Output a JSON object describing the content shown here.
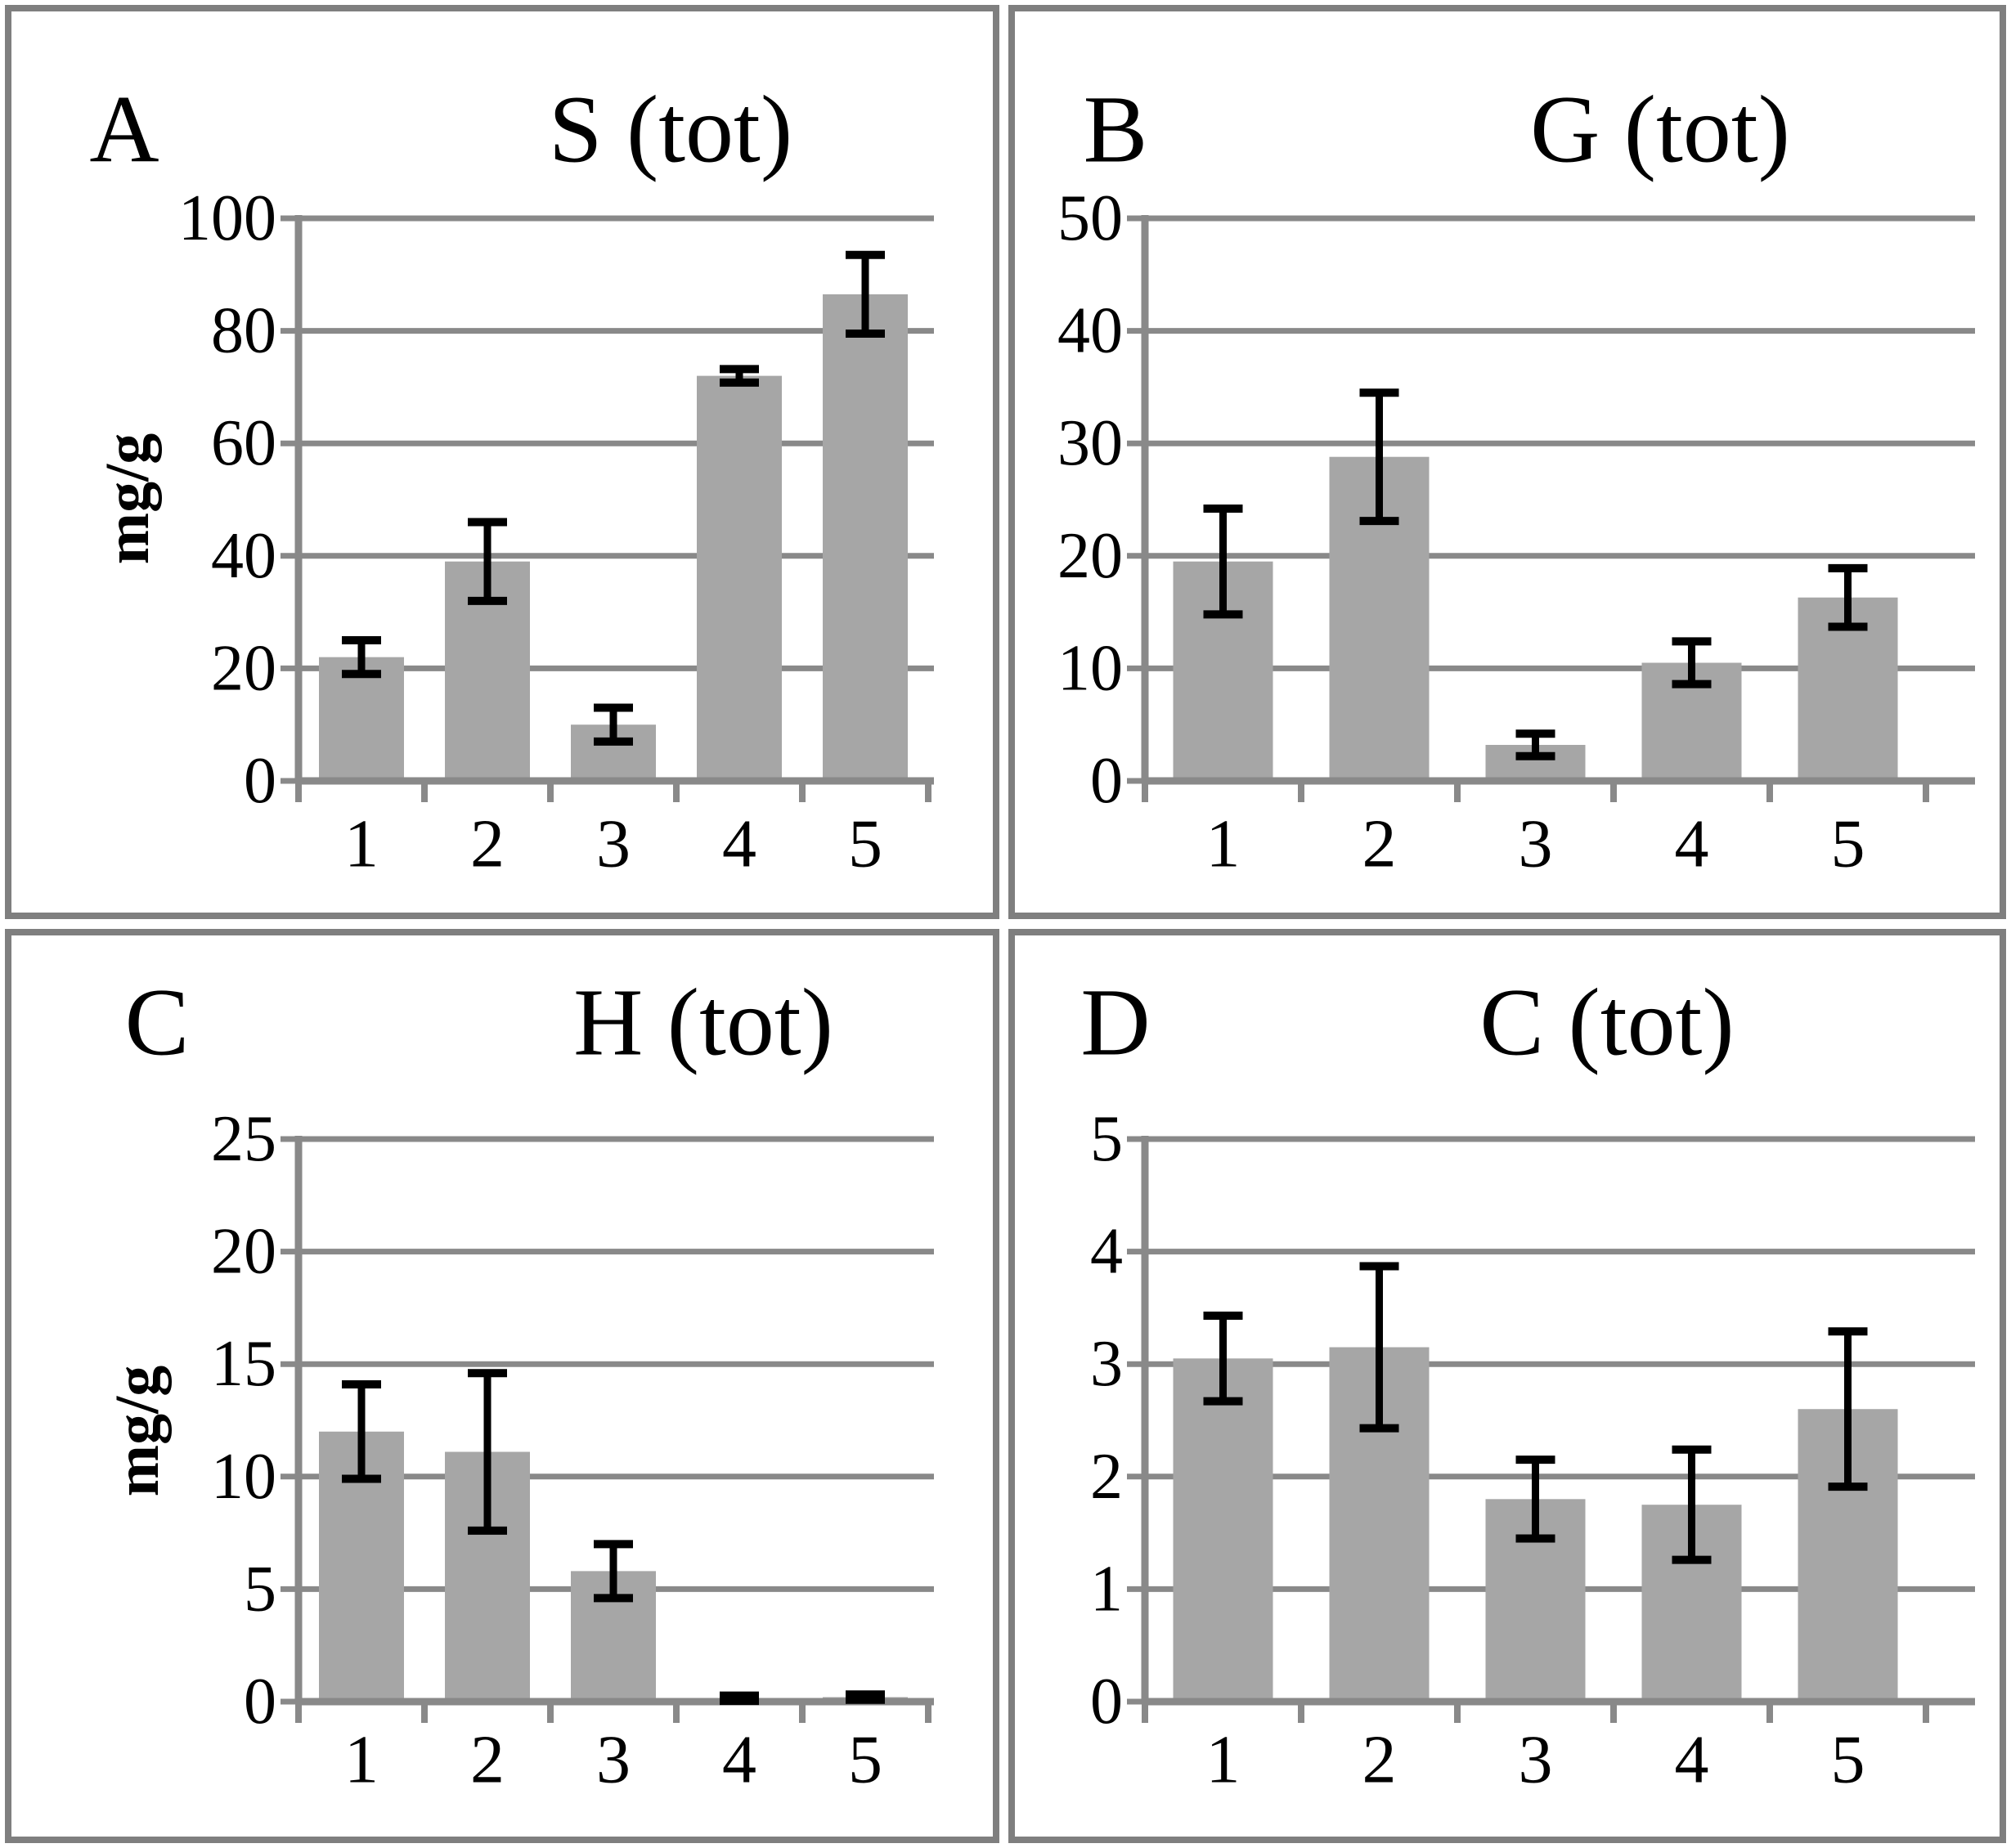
{
  "figure": {
    "background": "#ffffff",
    "colors": {
      "bar_fill": "#a6a6a6",
      "gridline": "#898989",
      "axis": "#898989",
      "error_bar": "#000000",
      "panel_border": "#7f7f7f",
      "text": "#000000"
    }
  },
  "chart_data": [
    {
      "type": "bar",
      "panel_letter": "A",
      "title": "S (tot)",
      "ylabel": "mg/g",
      "categories": [
        "1",
        "2",
        "3",
        "4",
        "5"
      ],
      "values": [
        22,
        39,
        10,
        72,
        86.5
      ],
      "errors": [
        3,
        7,
        3,
        1.2,
        7
      ],
      "ylim": [
        0,
        100
      ],
      "ytick_step": 20,
      "yticks": [
        "0",
        "20",
        "40",
        "60",
        "80",
        "100"
      ],
      "grid": "horizontal",
      "legend": "none"
    },
    {
      "type": "bar",
      "panel_letter": "B",
      "title": "G (tot)",
      "ylabel": null,
      "categories": [
        "1",
        "2",
        "3",
        "4",
        "5"
      ],
      "values": [
        19.5,
        28.8,
        3.2,
        10.5,
        16.3
      ],
      "errors": [
        4.7,
        5.7,
        1.0,
        1.9,
        2.6
      ],
      "ylim": [
        0,
        50
      ],
      "ytick_step": 10,
      "yticks": [
        "0",
        "10",
        "20",
        "30",
        "40",
        "50"
      ],
      "grid": "horizontal",
      "legend": "none"
    },
    {
      "type": "bar",
      "panel_letter": "C",
      "title": "H (tot)",
      "ylabel": "mg/g",
      "categories": [
        "1",
        "2",
        "3",
        "4",
        "5"
      ],
      "values": [
        12,
        11.1,
        5.8,
        0.15,
        0.2
      ],
      "errors": [
        2.1,
        3.5,
        1.2,
        0.12,
        0.12
      ],
      "ylim": [
        0,
        25
      ],
      "ytick_step": 5,
      "yticks": [
        "0",
        "5",
        "10",
        "15",
        "20",
        "25"
      ],
      "grid": "horizontal",
      "legend": "none"
    },
    {
      "type": "bar",
      "panel_letter": "D",
      "title": "C (tot)",
      "ylabel": null,
      "categories": [
        "1",
        "2",
        "3",
        "4",
        "5"
      ],
      "values": [
        3.05,
        3.15,
        1.8,
        1.75,
        2.6
      ],
      "errors": [
        0.38,
        0.72,
        0.35,
        0.49,
        0.69
      ],
      "ylim": [
        0,
        5
      ],
      "ytick_step": 1,
      "yticks": [
        "0",
        "1",
        "2",
        "3",
        "4",
        "5"
      ],
      "grid": "horizontal",
      "legend": "none"
    }
  ]
}
